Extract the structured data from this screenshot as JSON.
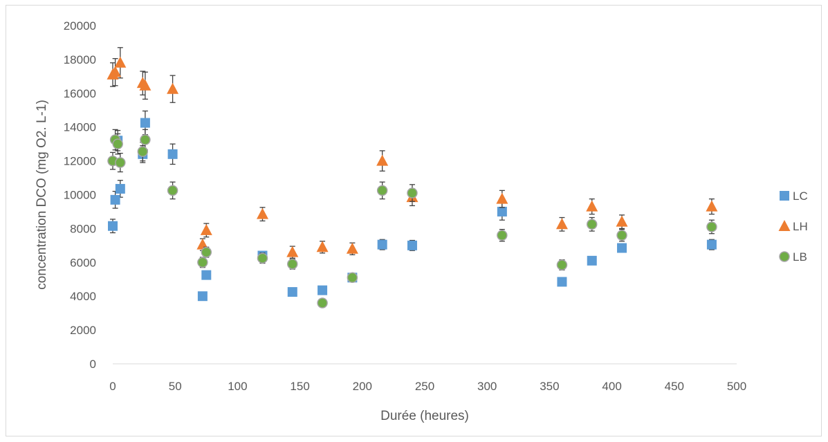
{
  "chart_data": {
    "type": "scatter",
    "title": "",
    "xlabel": "Durée (heures)",
    "ylabel": "concentration DCO (mg O2. L-1)",
    "xlim": [
      0,
      500
    ],
    "ylim": [
      0,
      20000
    ],
    "xticks": [
      0,
      50,
      100,
      150,
      200,
      250,
      300,
      350,
      400,
      450,
      500
    ],
    "yticks": [
      0,
      2000,
      4000,
      6000,
      8000,
      10000,
      12000,
      14000,
      16000,
      18000,
      20000
    ],
    "grid": false,
    "legend_position": "right",
    "series": [
      {
        "name": "LC",
        "color": "#5b9bd5",
        "marker": "square",
        "points": [
          {
            "x": 0,
            "y": 8150,
            "err": 400
          },
          {
            "x": 2,
            "y": 9700,
            "err": 500
          },
          {
            "x": 4,
            "y": 13200,
            "err": 600
          },
          {
            "x": 6,
            "y": 10350,
            "err": 500
          },
          {
            "x": 24,
            "y": 12400,
            "err": 500
          },
          {
            "x": 26,
            "y": 14250,
            "err": 700
          },
          {
            "x": 48,
            "y": 12400,
            "err": 600
          },
          {
            "x": 72,
            "y": 4000,
            "err": 0
          },
          {
            "x": 75,
            "y": 5250,
            "err": 0
          },
          {
            "x": 120,
            "y": 6400,
            "err": 200
          },
          {
            "x": 144,
            "y": 4250,
            "err": 0
          },
          {
            "x": 168,
            "y": 4350,
            "err": 0
          },
          {
            "x": 192,
            "y": 5100,
            "err": 0
          },
          {
            "x": 216,
            "y": 7050,
            "err": 300
          },
          {
            "x": 240,
            "y": 7000,
            "err": 300
          },
          {
            "x": 312,
            "y": 9000,
            "err": 500
          },
          {
            "x": 360,
            "y": 4850,
            "err": 0
          },
          {
            "x": 384,
            "y": 6100,
            "err": 0
          },
          {
            "x": 408,
            "y": 6850,
            "err": 250
          },
          {
            "x": 480,
            "y": 7050,
            "err": 300
          }
        ]
      },
      {
        "name": "LH",
        "color": "#ed7d31",
        "marker": "triangle",
        "points": [
          {
            "x": 0,
            "y": 17100,
            "err": 700
          },
          {
            "x": 2,
            "y": 17250,
            "err": 800
          },
          {
            "x": 6,
            "y": 17800,
            "err": 900
          },
          {
            "x": 24,
            "y": 16600,
            "err": 700
          },
          {
            "x": 26,
            "y": 16450,
            "err": 800
          },
          {
            "x": 48,
            "y": 16250,
            "err": 800
          },
          {
            "x": 72,
            "y": 7050,
            "err": 350
          },
          {
            "x": 75,
            "y": 7900,
            "err": 400
          },
          {
            "x": 120,
            "y": 8850,
            "err": 400
          },
          {
            "x": 144,
            "y": 6600,
            "err": 350
          },
          {
            "x": 168,
            "y": 6900,
            "err": 350
          },
          {
            "x": 192,
            "y": 6800,
            "err": 350
          },
          {
            "x": 216,
            "y": 12000,
            "err": 600
          },
          {
            "x": 240,
            "y": 9850,
            "err": 500
          },
          {
            "x": 312,
            "y": 9750,
            "err": 500
          },
          {
            "x": 360,
            "y": 8250,
            "err": 400
          },
          {
            "x": 384,
            "y": 9300,
            "err": 450
          },
          {
            "x": 408,
            "y": 8400,
            "err": 400
          },
          {
            "x": 480,
            "y": 9300,
            "err": 450
          }
        ]
      },
      {
        "name": "LB",
        "color": "#70ad47",
        "marker": "circle",
        "points": [
          {
            "x": 0,
            "y": 12000,
            "err": 500
          },
          {
            "x": 2,
            "y": 13250,
            "err": 600
          },
          {
            "x": 4,
            "y": 13000,
            "err": 600
          },
          {
            "x": 6,
            "y": 11900,
            "err": 550
          },
          {
            "x": 24,
            "y": 12550,
            "err": 550
          },
          {
            "x": 26,
            "y": 13250,
            "err": 600
          },
          {
            "x": 48,
            "y": 10250,
            "err": 500
          },
          {
            "x": 72,
            "y": 6000,
            "err": 300
          },
          {
            "x": 75,
            "y": 6600,
            "err": 300
          },
          {
            "x": 120,
            "y": 6250,
            "err": 300
          },
          {
            "x": 144,
            "y": 5900,
            "err": 300
          },
          {
            "x": 168,
            "y": 3600,
            "err": 0
          },
          {
            "x": 192,
            "y": 5100,
            "err": 0
          },
          {
            "x": 216,
            "y": 10250,
            "err": 500
          },
          {
            "x": 240,
            "y": 10100,
            "err": 500
          },
          {
            "x": 312,
            "y": 7600,
            "err": 350
          },
          {
            "x": 360,
            "y": 5850,
            "err": 300
          },
          {
            "x": 384,
            "y": 8250,
            "err": 400
          },
          {
            "x": 408,
            "y": 7600,
            "err": 350
          },
          {
            "x": 480,
            "y": 8100,
            "err": 400
          }
        ]
      }
    ]
  }
}
